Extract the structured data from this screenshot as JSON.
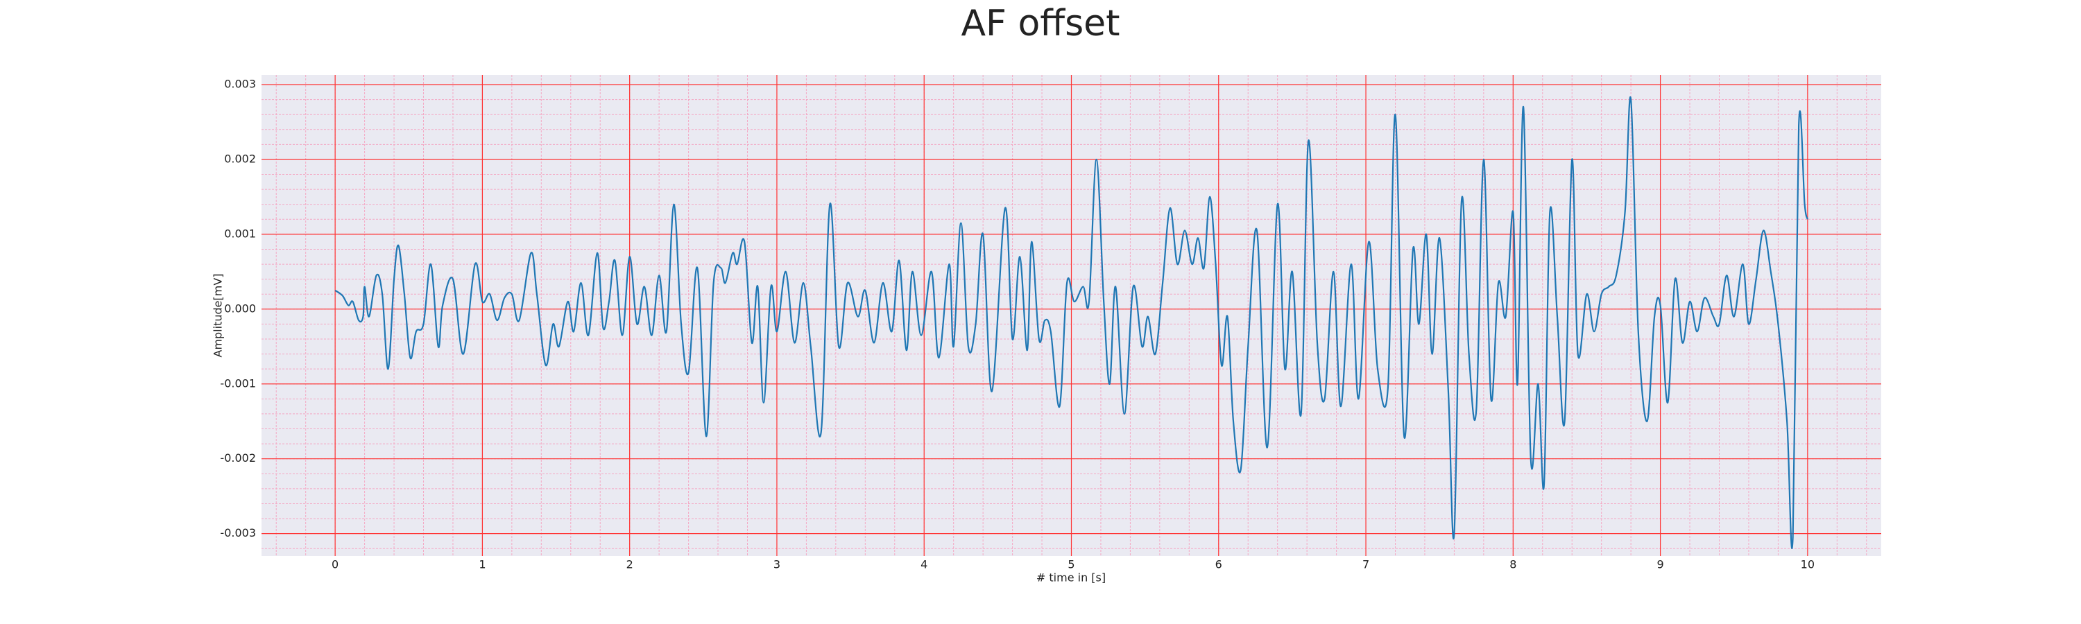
{
  "chart_data": {
    "type": "line",
    "title": "AF offset",
    "xlabel": "# time in [s]",
    "ylabel": "Amplitude[mV]",
    "x": [
      0.0,
      0.05,
      0.09,
      0.12,
      0.16,
      0.19,
      0.2,
      0.23,
      0.28,
      0.32,
      0.36,
      0.4,
      0.43,
      0.47,
      0.51,
      0.55,
      0.6,
      0.65,
      0.7,
      0.73,
      0.8,
      0.87,
      0.95,
      1.0,
      1.05,
      1.1,
      1.15,
      1.2,
      1.25,
      1.33,
      1.37,
      1.43,
      1.48,
      1.52,
      1.58,
      1.62,
      1.67,
      1.72,
      1.78,
      1.82,
      1.86,
      1.9,
      1.95,
      2.0,
      2.05,
      2.1,
      2.15,
      2.2,
      2.25,
      2.3,
      2.35,
      2.4,
      2.46,
      2.52,
      2.57,
      2.62,
      2.65,
      2.7,
      2.73,
      2.78,
      2.83,
      2.87,
      2.91,
      2.96,
      3.0,
      3.06,
      3.12,
      3.18,
      3.23,
      3.3,
      3.36,
      3.42,
      3.48,
      3.55,
      3.6,
      3.66,
      3.72,
      3.78,
      3.83,
      3.88,
      3.92,
      3.98,
      4.05,
      4.1,
      4.17,
      4.2,
      4.25,
      4.3,
      4.35,
      4.4,
      4.46,
      4.55,
      4.6,
      4.65,
      4.7,
      4.73,
      4.78,
      4.82,
      4.86,
      4.92,
      4.97,
      5.02,
      5.08,
      5.12,
      5.17,
      5.22,
      5.26,
      5.3,
      5.36,
      5.42,
      5.48,
      5.52,
      5.57,
      5.62,
      5.67,
      5.72,
      5.77,
      5.82,
      5.86,
      5.9,
      5.94,
      5.98,
      6.02,
      6.06,
      6.1,
      6.15,
      6.2,
      6.26,
      6.33,
      6.4,
      6.45,
      6.5,
      6.56,
      6.61,
      6.67,
      6.72,
      6.78,
      6.83,
      6.9,
      6.95,
      7.02,
      7.08,
      7.15,
      7.2,
      7.26,
      7.32,
      7.36,
      7.41,
      7.45,
      7.5,
      7.56,
      7.6,
      7.65,
      7.7,
      7.75,
      7.8,
      7.85,
      7.9,
      7.95,
      8.0,
      8.03,
      8.07,
      8.12,
      8.17,
      8.21,
      8.25,
      8.3,
      8.35,
      8.4,
      8.44,
      8.5,
      8.55,
      8.6,
      8.65,
      8.7,
      8.76,
      8.8,
      8.85,
      8.91,
      8.96,
      9.0,
      9.05,
      9.1,
      9.15,
      9.2,
      9.25,
      9.3,
      9.36,
      9.4,
      9.45,
      9.5,
      9.56,
      9.6,
      9.65,
      9.7,
      9.75,
      9.8,
      9.86,
      9.9,
      9.94,
      9.98,
      10.0
    ],
    "series": [
      {
        "name": "AF offset",
        "color": "#1f77b4",
        "values": [
          0.00025,
          0.00018,
          5e-05,
          0.0001,
          -0.00015,
          -0.0001,
          0.0003,
          -0.0001,
          0.00045,
          0.0002,
          -0.0008,
          0.0004,
          0.00085,
          0.0002,
          -0.00065,
          -0.0003,
          -0.0002,
          0.0006,
          -0.0005,
          5e-05,
          0.0004,
          -0.0006,
          0.0006,
          0.0001,
          0.0002,
          -0.00015,
          0.00015,
          0.0002,
          -0.00015,
          0.00075,
          0.0002,
          -0.00075,
          -0.0002,
          -0.0005,
          0.0001,
          -0.0003,
          0.00035,
          -0.00035,
          0.00075,
          -0.00025,
          0.0001,
          0.00065,
          -0.00035,
          0.0007,
          -0.0002,
          0.0003,
          -0.00035,
          0.00045,
          -0.0003,
          0.0014,
          -0.0002,
          -0.00085,
          0.00055,
          -0.0017,
          0.00035,
          0.00055,
          0.00035,
          0.00075,
          0.0006,
          0.0009,
          -0.00045,
          0.0003,
          -0.00125,
          0.0003,
          -0.0003,
          0.0005,
          -0.00045,
          0.00035,
          -0.0005,
          -0.00165,
          0.0014,
          -0.0005,
          0.00035,
          -0.0001,
          0.00025,
          -0.00045,
          0.00035,
          -0.0003,
          0.00065,
          -0.00055,
          0.0005,
          -0.00035,
          0.0005,
          -0.00065,
          0.0006,
          -0.0005,
          0.00115,
          -0.0005,
          -0.0002,
          0.001,
          -0.0011,
          0.00135,
          -0.0004,
          0.0007,
          -0.00055,
          0.0009,
          -0.0004,
          -0.00015,
          -0.0003,
          -0.0013,
          0.00035,
          0.0001,
          0.0003,
          0.0001,
          0.002,
          0.0001,
          -0.001,
          0.0003,
          -0.0014,
          0.0003,
          -0.0005,
          -0.0001,
          -0.0006,
          0.00035,
          0.00135,
          0.0006,
          0.00105,
          0.0006,
          0.00095,
          0.00055,
          0.0015,
          0.0006,
          -0.00075,
          -0.0001,
          -0.0015,
          -0.00215,
          -0.0005,
          0.00105,
          -0.00185,
          0.0014,
          -0.0008,
          0.0005,
          -0.0014,
          0.00225,
          -0.00045,
          -0.0012,
          0.0005,
          -0.0013,
          0.0006,
          -0.0012,
          0.0009,
          -0.0008,
          -0.00105,
          0.0026,
          -0.0017,
          0.0008,
          -0.0002,
          0.001,
          -0.0006,
          0.00095,
          -0.0011,
          -0.003,
          0.00145,
          -0.0006,
          -0.00135,
          0.002,
          -0.0012,
          0.00035,
          -0.0001,
          0.0013,
          -0.001,
          0.0027,
          -0.002,
          -0.001,
          -0.00235,
          0.0013,
          -0.0001,
          -0.0015,
          0.002,
          -0.0006,
          0.0002,
          -0.0003,
          0.0002,
          0.0003,
          0.00045,
          0.0013,
          0.0028,
          -0.0003,
          -0.0015,
          -0.0001,
          5e-05,
          -0.00125,
          0.0004,
          -0.00045,
          0.0001,
          -0.0003,
          0.00015,
          -0.0001,
          -0.0002,
          0.00045,
          -0.0001,
          0.0006,
          -0.0002,
          0.0004,
          0.00105,
          0.0005,
          -0.0002,
          -0.0015,
          -0.00305,
          0.00245,
          0.0014,
          0.0012
        ]
      }
    ],
    "xlim": [
      -0.5,
      10.5
    ],
    "ylim": [
      -0.0033,
      0.00313
    ],
    "xticks": [
      0,
      1,
      2,
      3,
      4,
      5,
      6,
      7,
      8,
      9,
      10
    ],
    "yticks": [
      -0.003,
      -0.002,
      -0.001,
      {
        "value": 0,
        "label": "0.000"
      },
      0.001,
      0.002,
      0.003
    ],
    "grid": true,
    "grid_color": "#ff3333",
    "minor_grid": true,
    "minor_grid_color": "#f4a8c4",
    "minor_divisions": 5,
    "background": "#eaeaf2"
  }
}
